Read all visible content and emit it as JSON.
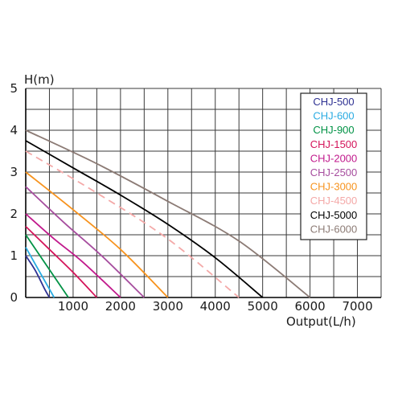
{
  "chart_data": {
    "type": "line",
    "title": "",
    "ylabel": "H(m)",
    "xlabel": "Output(L/h)",
    "xlim": [
      0,
      7500
    ],
    "ylim": [
      0,
      5
    ],
    "x_ticks": [
      1000,
      2000,
      3000,
      4000,
      5000,
      6000,
      7000
    ],
    "y_ticks": [
      0,
      1,
      2,
      3,
      4,
      5
    ],
    "grid": true,
    "legend_position": "top-right",
    "series": [
      {
        "name": "CHJ-500",
        "color": "#2e3192",
        "dashed": false,
        "x": [
          0,
          200,
          400,
          500
        ],
        "y": [
          1.0,
          0.65,
          0.2,
          0.0
        ]
      },
      {
        "name": "CHJ-600",
        "color": "#29abe2",
        "dashed": false,
        "x": [
          0,
          200,
          400,
          600
        ],
        "y": [
          1.2,
          0.8,
          0.4,
          0.0
        ]
      },
      {
        "name": "CHJ-900",
        "color": "#009245",
        "dashed": false,
        "x": [
          0,
          300,
          600,
          900
        ],
        "y": [
          1.5,
          1.0,
          0.5,
          0.0
        ]
      },
      {
        "name": "CHJ-1500",
        "color": "#d4145a",
        "dashed": false,
        "x": [
          0,
          500,
          1000,
          1500
        ],
        "y": [
          1.7,
          1.15,
          0.6,
          0.0
        ]
      },
      {
        "name": "CHJ-2000",
        "color": "#c1198c",
        "dashed": false,
        "x": [
          0,
          600,
          1200,
          2000
        ],
        "y": [
          2.0,
          1.4,
          0.85,
          0.0
        ]
      },
      {
        "name": "CHJ-2500",
        "color": "#a64d9e",
        "dashed": false,
        "x": [
          0,
          800,
          1600,
          2500
        ],
        "y": [
          2.65,
          1.8,
          1.0,
          0.0
        ]
      },
      {
        "name": "CHJ-3000",
        "color": "#f7931e",
        "dashed": false,
        "x": [
          0,
          1000,
          2000,
          3000
        ],
        "y": [
          3.0,
          2.1,
          1.15,
          0.0
        ]
      },
      {
        "name": "CHJ-4500",
        "color": "#f4a9a8",
        "dashed": true,
        "x": [
          0,
          1500,
          3000,
          4500
        ],
        "y": [
          3.5,
          2.5,
          1.4,
          0.0
        ]
      },
      {
        "name": "CHJ-5000",
        "color": "#000000",
        "dashed": false,
        "x": [
          0,
          1000,
          2000,
          3000,
          4000,
          5000
        ],
        "y": [
          3.75,
          3.1,
          2.45,
          1.75,
          0.95,
          0.0
        ]
      },
      {
        "name": "CHJ-6000",
        "color": "#8c7b75",
        "dashed": false,
        "x": [
          0,
          1500,
          3000,
          4500,
          6000
        ],
        "y": [
          4.0,
          3.2,
          2.3,
          1.35,
          0.0
        ]
      }
    ]
  }
}
